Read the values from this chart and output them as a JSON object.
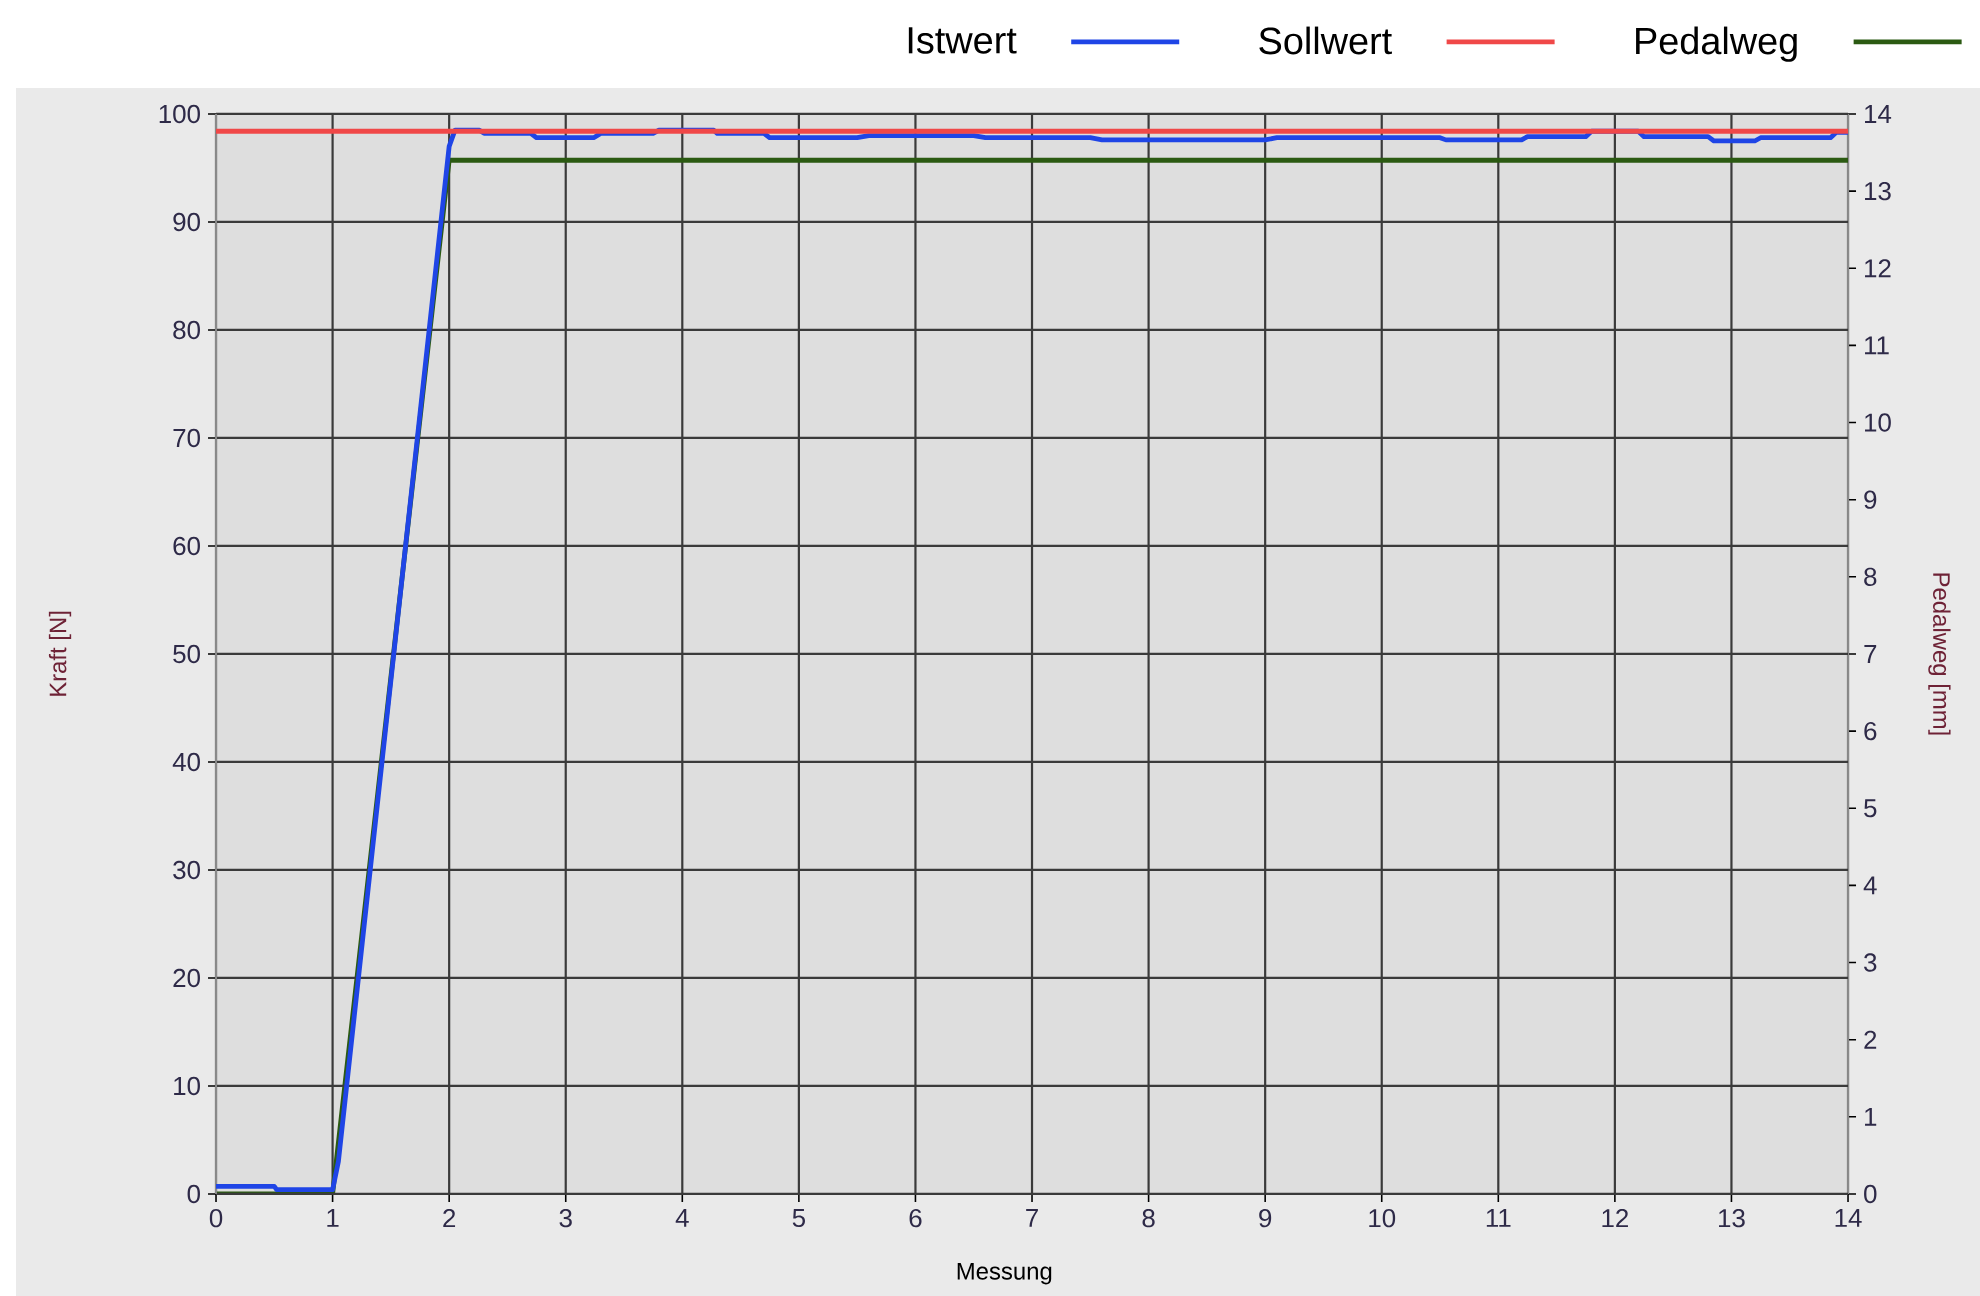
{
  "chart_data": {
    "type": "line",
    "xlabel": "Messung",
    "ylabel": "Kraft [N]",
    "y2label": "Pedalweg [mm]",
    "xlim": [
      0,
      14
    ],
    "xticks": [
      0,
      1,
      2,
      3,
      4,
      5,
      6,
      7,
      8,
      9,
      10,
      11,
      12,
      13,
      14
    ],
    "ylim": [
      0,
      100
    ],
    "yticks": [
      0,
      10,
      20,
      30,
      40,
      50,
      60,
      70,
      80,
      90,
      100
    ],
    "y2lim": [
      0,
      14
    ],
    "y2ticks": [
      0,
      1,
      2,
      3,
      4,
      5,
      6,
      7,
      8,
      9,
      10,
      11,
      12,
      13,
      14
    ],
    "grid": true,
    "legend": "top right",
    "marker": "none",
    "line_style": "solid",
    "series": [
      {
        "name": "Istwert",
        "color": "#1f45e6",
        "x": [
          0,
          0.5,
          0.52,
          1.0,
          1.05,
          2.0,
          2.05,
          2.26,
          2.3,
          2.7,
          2.75,
          3.24,
          3.3,
          3.75,
          3.8,
          4.27,
          4.3,
          4.7,
          4.75,
          5.5,
          5.6,
          6.5,
          6.6,
          7.5,
          7.6,
          9.0,
          9.1,
          10.5,
          10.55,
          11.2,
          11.25,
          11.75,
          11.8,
          12.2,
          12.25,
          12.8,
          12.85,
          13.2,
          13.25,
          13.85,
          13.9,
          14
        ],
        "values": [
          0.7,
          0.7,
          0.4,
          0.4,
          3,
          97,
          98.5,
          98.5,
          98.2,
          98.2,
          97.8,
          97.8,
          98.2,
          98.2,
          98.5,
          98.5,
          98.2,
          98.2,
          97.8,
          97.8,
          98.0,
          98.0,
          97.8,
          97.8,
          97.6,
          97.6,
          97.8,
          97.8,
          97.6,
          97.6,
          97.9,
          97.9,
          98.4,
          98.4,
          97.9,
          97.9,
          97.5,
          97.5,
          97.8,
          97.8,
          98.3,
          98.3
        ]
      },
      {
        "name": "Sollwert",
        "color": "#f04848",
        "x": [
          0,
          14
        ],
        "values": [
          98.4,
          98.4
        ]
      },
      {
        "name": "Pedalweg",
        "color": "#2b5a12",
        "axis": "y2",
        "x": [
          0,
          1,
          2,
          14
        ],
        "values": [
          0,
          0,
          13.4,
          13.4
        ]
      }
    ]
  }
}
